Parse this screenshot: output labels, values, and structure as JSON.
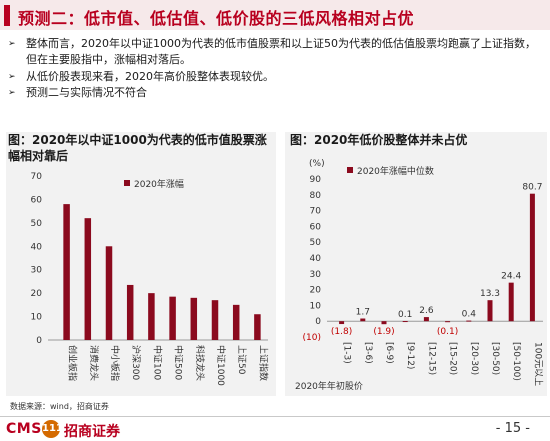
{
  "title": "预测二：低市值、低估值、低价股的三低风格相对占优",
  "bullets": [
    "整体而言，2020年以中证1000为代表的低市值股票和以上证50为代表的低估值股票均跑赢了上证指数，但在主要股指中，涨幅相对落后。",
    "从低价股表现来看，2020年高价股整体表现较优。",
    "预测二与实际情况不符合"
  ],
  "bullet_mark": "➢",
  "left_panel_title": "图：2020年以中证1000为代表的低市值股票涨幅相对靠后",
  "right_panel_title": "图：2020年低价股整体并未占优",
  "source": "数据来源：wind，招商证券",
  "logo": {
    "en": "CMS",
    "badge": "111",
    "cn": "招商证券"
  },
  "page_number": "- 15 -",
  "colors": {
    "bar": "#8b0a1e",
    "accent": "#b8001f",
    "panel_bg": "#f2f2f2"
  },
  "chart_data": [
    {
      "type": "bar",
      "categories": [
        "创业板指",
        "消费龙头",
        "中小板指",
        "沪深300",
        "中证100",
        "中证500",
        "科技龙头",
        "中证1000",
        "上证50",
        "上证指数"
      ],
      "series": [
        {
          "name": "2020年涨幅",
          "values": [
            58,
            52,
            40,
            23.5,
            20,
            18.5,
            18,
            17,
            15,
            11
          ]
        }
      ],
      "ylim": [
        0,
        70
      ],
      "yticks": [
        0,
        10,
        20,
        30,
        40,
        50,
        60,
        70
      ],
      "legend": "top-center"
    },
    {
      "type": "bar",
      "categories": [
        "[1-3)",
        "[3-6)",
        "[6-9)",
        "[9-12)",
        "[12-15)",
        "[15-20)",
        "[20-30)",
        "[30-50)",
        "[50-100)",
        "100元以上"
      ],
      "series": [
        {
          "name": "2020年涨幅中位数",
          "values": [
            -1.8,
            1.7,
            -1.9,
            0.1,
            2.6,
            -0.1,
            0.4,
            13.3,
            24.4,
            80.7
          ]
        }
      ],
      "value_labels": [
        "(1.8)",
        "1.7",
        "(1.9)",
        "0.1",
        "2.6",
        "(0.1)",
        "0.4",
        "13.3",
        "24.4",
        "80.7"
      ],
      "ylim": [
        -10,
        90
      ],
      "yticks": [
        -10,
        0,
        10,
        20,
        30,
        40,
        50,
        60,
        70,
        80,
        90
      ],
      "ytick_labels": [
        "(10)",
        "0",
        "10",
        "20",
        "30",
        "40",
        "50",
        "60",
        "70",
        "80",
        "90"
      ],
      "yunit": "(%)",
      "xlabel": "2020年年初股价",
      "legend": "top-left"
    }
  ]
}
